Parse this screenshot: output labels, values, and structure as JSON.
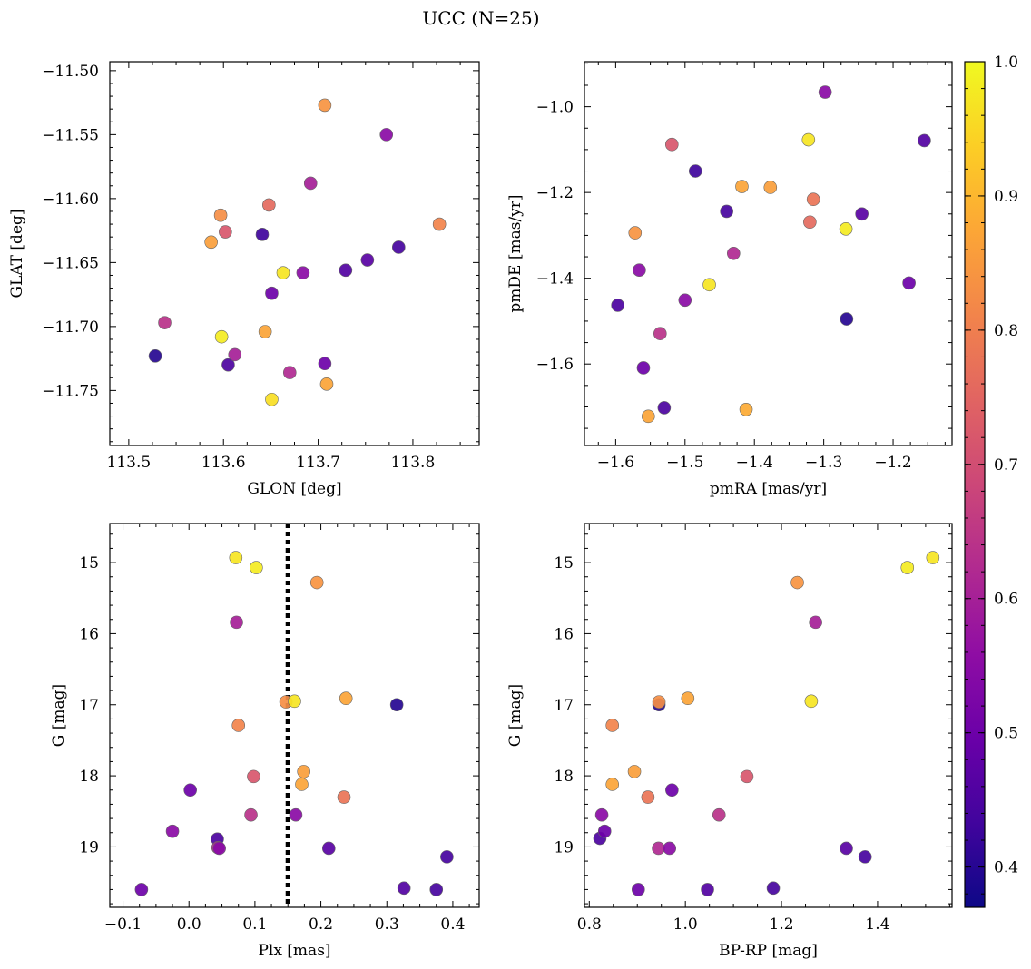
{
  "figure": {
    "title": "UCC (N=25)",
    "colorbar": {
      "min": 0.37,
      "max": 1.0,
      "ticks": [
        0.4,
        0.5,
        0.6,
        0.7,
        0.8,
        0.9,
        1.0
      ],
      "colormap": "plasma"
    },
    "point_edge_color": "#666666"
  },
  "chart_data": [
    {
      "type": "scatter",
      "id": "glon_glat",
      "xlabel": "GLON [deg]",
      "ylabel": "GLAT [deg]",
      "xlim": [
        113.48,
        113.87
      ],
      "ylim": [
        -11.793,
        -11.493
      ],
      "y_inverted": false,
      "xticks": [
        113.5,
        113.6,
        113.7,
        113.8
      ],
      "yticks": [
        -11.75,
        -11.7,
        -11.65,
        -11.6,
        -11.55,
        -11.5
      ],
      "points": [
        {
          "x": 113.528,
          "y": -11.723,
          "c": 0.4
        },
        {
          "x": 113.538,
          "y": -11.697,
          "c": 0.64
        },
        {
          "x": 113.587,
          "y": -11.634,
          "c": 0.86
        },
        {
          "x": 113.597,
          "y": -11.613,
          "c": 0.83
        },
        {
          "x": 113.598,
          "y": -11.708,
          "c": 0.98
        },
        {
          "x": 113.602,
          "y": -11.626,
          "c": 0.72
        },
        {
          "x": 113.605,
          "y": -11.73,
          "c": 0.45
        },
        {
          "x": 113.612,
          "y": -11.722,
          "c": 0.6
        },
        {
          "x": 113.641,
          "y": -11.628,
          "c": 0.43
        },
        {
          "x": 113.644,
          "y": -11.704,
          "c": 0.87
        },
        {
          "x": 113.648,
          "y": -11.605,
          "c": 0.76
        },
        {
          "x": 113.651,
          "y": -11.674,
          "c": 0.5
        },
        {
          "x": 113.651,
          "y": -11.757,
          "c": 0.96
        },
        {
          "x": 113.663,
          "y": -11.658,
          "c": 0.97
        },
        {
          "x": 113.67,
          "y": -11.736,
          "c": 0.62
        },
        {
          "x": 113.684,
          "y": -11.658,
          "c": 0.55
        },
        {
          "x": 113.692,
          "y": -11.588,
          "c": 0.6
        },
        {
          "x": 113.707,
          "y": -11.527,
          "c": 0.84
        },
        {
          "x": 113.707,
          "y": -11.729,
          "c": 0.5
        },
        {
          "x": 113.709,
          "y": -11.745,
          "c": 0.87
        },
        {
          "x": 113.729,
          "y": -11.656,
          "c": 0.46
        },
        {
          "x": 113.752,
          "y": -11.648,
          "c": 0.47
        },
        {
          "x": 113.772,
          "y": -11.55,
          "c": 0.55
        },
        {
          "x": 113.785,
          "y": -11.638,
          "c": 0.44
        },
        {
          "x": 113.828,
          "y": -11.62,
          "c": 0.81
        }
      ]
    },
    {
      "type": "scatter",
      "id": "pmra_pmde",
      "xlabel": "pmRA [mas/yr]",
      "ylabel": "pmDE [mas/yr]",
      "xlim": [
        -1.645,
        -1.115
      ],
      "ylim": [
        -1.79,
        -0.895
      ],
      "y_inverted": false,
      "xticks": [
        -1.6,
        -1.5,
        -1.4,
        -1.3,
        -1.2
      ],
      "yticks": [
        -1.6,
        -1.4,
        -1.2,
        -1.0
      ],
      "points": [
        {
          "x": -1.597,
          "y": -1.463,
          "c": 0.45
        },
        {
          "x": -1.572,
          "y": -1.294,
          "c": 0.84
        },
        {
          "x": -1.566,
          "y": -1.381,
          "c": 0.55
        },
        {
          "x": -1.56,
          "y": -1.609,
          "c": 0.5
        },
        {
          "x": -1.553,
          "y": -1.722,
          "c": 0.87
        },
        {
          "x": -1.536,
          "y": -1.529,
          "c": 0.64
        },
        {
          "x": -1.53,
          "y": -1.702,
          "c": 0.45
        },
        {
          "x": -1.519,
          "y": -1.088,
          "c": 0.72
        },
        {
          "x": -1.5,
          "y": -1.451,
          "c": 0.55
        },
        {
          "x": -1.485,
          "y": -1.15,
          "c": 0.43
        },
        {
          "x": -1.465,
          "y": -1.415,
          "c": 0.97
        },
        {
          "x": -1.44,
          "y": -1.244,
          "c": 0.44
        },
        {
          "x": -1.43,
          "y": -1.342,
          "c": 0.62
        },
        {
          "x": -1.418,
          "y": -1.186,
          "c": 0.87
        },
        {
          "x": -1.412,
          "y": -1.706,
          "c": 0.88
        },
        {
          "x": -1.377,
          "y": -1.188,
          "c": 0.86
        },
        {
          "x": -1.322,
          "y": -1.077,
          "c": 0.97
        },
        {
          "x": -1.32,
          "y": -1.269,
          "c": 0.76
        },
        {
          "x": -1.315,
          "y": -1.216,
          "c": 0.78
        },
        {
          "x": -1.298,
          "y": -0.966,
          "c": 0.55
        },
        {
          "x": -1.267,
          "y": -1.495,
          "c": 0.4
        },
        {
          "x": -1.268,
          "y": -1.285,
          "c": 0.98
        },
        {
          "x": -1.245,
          "y": -1.25,
          "c": 0.47
        },
        {
          "x": -1.177,
          "y": -1.411,
          "c": 0.5
        },
        {
          "x": -1.155,
          "y": -1.079,
          "c": 0.46
        }
      ]
    },
    {
      "type": "scatter",
      "id": "plx_g",
      "xlabel": "Plx [mas]",
      "ylabel": "G [mag]",
      "xlim": [
        -0.12,
        0.44
      ],
      "ylim": [
        14.45,
        19.85
      ],
      "y_inverted": true,
      "xticks": [
        -0.1,
        0.0,
        0.1,
        0.2,
        0.3,
        0.4
      ],
      "yticks": [
        15,
        16,
        17,
        18,
        19
      ],
      "reference_line": {
        "x": 0.15,
        "style": "dotted"
      },
      "points": [
        {
          "x": -0.072,
          "y": 19.6,
          "c": 0.5
        },
        {
          "x": -0.025,
          "y": 18.78,
          "c": 0.55
        },
        {
          "x": 0.002,
          "y": 18.2,
          "c": 0.5
        },
        {
          "x": 0.043,
          "y": 18.89,
          "c": 0.45
        },
        {
          "x": 0.044,
          "y": 19.01,
          "c": 0.62
        },
        {
          "x": 0.046,
          "y": 19.02,
          "c": 0.55
        },
        {
          "x": 0.071,
          "y": 14.93,
          "c": 0.97
        },
        {
          "x": 0.072,
          "y": 15.84,
          "c": 0.6
        },
        {
          "x": 0.075,
          "y": 17.29,
          "c": 0.81
        },
        {
          "x": 0.098,
          "y": 18.01,
          "c": 0.72
        },
        {
          "x": 0.094,
          "y": 18.55,
          "c": 0.64
        },
        {
          "x": 0.102,
          "y": 15.07,
          "c": 0.98
        },
        {
          "x": 0.147,
          "y": 16.96,
          "c": 0.83
        },
        {
          "x": 0.16,
          "y": 16.95,
          "c": 0.97
        },
        {
          "x": 0.162,
          "y": 18.55,
          "c": 0.55
        },
        {
          "x": 0.171,
          "y": 18.12,
          "c": 0.87
        },
        {
          "x": 0.174,
          "y": 17.94,
          "c": 0.86
        },
        {
          "x": 0.194,
          "y": 15.28,
          "c": 0.84
        },
        {
          "x": 0.212,
          "y": 19.02,
          "c": 0.47
        },
        {
          "x": 0.235,
          "y": 18.3,
          "c": 0.78
        },
        {
          "x": 0.238,
          "y": 16.91,
          "c": 0.87
        },
        {
          "x": 0.315,
          "y": 17.0,
          "c": 0.4
        },
        {
          "x": 0.326,
          "y": 19.58,
          "c": 0.46
        },
        {
          "x": 0.375,
          "y": 19.6,
          "c": 0.44
        },
        {
          "x": 0.391,
          "y": 19.14,
          "c": 0.44
        }
      ]
    },
    {
      "type": "scatter",
      "id": "bprp_g",
      "xlabel": "BP-RP [mag]",
      "ylabel": "G [mag]",
      "xlim": [
        0.79,
        1.555
      ],
      "ylim": [
        14.45,
        19.85
      ],
      "y_inverted": true,
      "xticks": [
        0.8,
        1.0,
        1.2,
        1.4
      ],
      "yticks": [
        15,
        16,
        17,
        18,
        19
      ],
      "points": [
        {
          "x": 0.822,
          "y": 18.88,
          "c": 0.45
        },
        {
          "x": 0.826,
          "y": 18.55,
          "c": 0.55
        },
        {
          "x": 0.832,
          "y": 18.78,
          "c": 0.5
        },
        {
          "x": 0.848,
          "y": 17.29,
          "c": 0.81
        },
        {
          "x": 0.848,
          "y": 18.12,
          "c": 0.87
        },
        {
          "x": 0.894,
          "y": 17.94,
          "c": 0.86
        },
        {
          "x": 0.902,
          "y": 19.6,
          "c": 0.5
        },
        {
          "x": 0.922,
          "y": 18.3,
          "c": 0.78
        },
        {
          "x": 0.945,
          "y": 17.0,
          "c": 0.4
        },
        {
          "x": 0.945,
          "y": 16.96,
          "c": 0.83
        },
        {
          "x": 0.944,
          "y": 19.02,
          "c": 0.62
        },
        {
          "x": 0.967,
          "y": 19.02,
          "c": 0.55
        },
        {
          "x": 0.972,
          "y": 18.2,
          "c": 0.5
        },
        {
          "x": 1.005,
          "y": 16.91,
          "c": 0.87
        },
        {
          "x": 1.046,
          "y": 19.6,
          "c": 0.46
        },
        {
          "x": 1.07,
          "y": 18.55,
          "c": 0.64
        },
        {
          "x": 1.128,
          "y": 18.01,
          "c": 0.72
        },
        {
          "x": 1.183,
          "y": 19.58,
          "c": 0.44
        },
        {
          "x": 1.233,
          "y": 15.28,
          "c": 0.84
        },
        {
          "x": 1.262,
          "y": 16.95,
          "c": 0.97
        },
        {
          "x": 1.271,
          "y": 15.84,
          "c": 0.6
        },
        {
          "x": 1.335,
          "y": 19.02,
          "c": 0.47
        },
        {
          "x": 1.374,
          "y": 19.14,
          "c": 0.44
        },
        {
          "x": 1.462,
          "y": 15.07,
          "c": 0.98
        },
        {
          "x": 1.515,
          "y": 14.93,
          "c": 0.97
        }
      ]
    }
  ]
}
